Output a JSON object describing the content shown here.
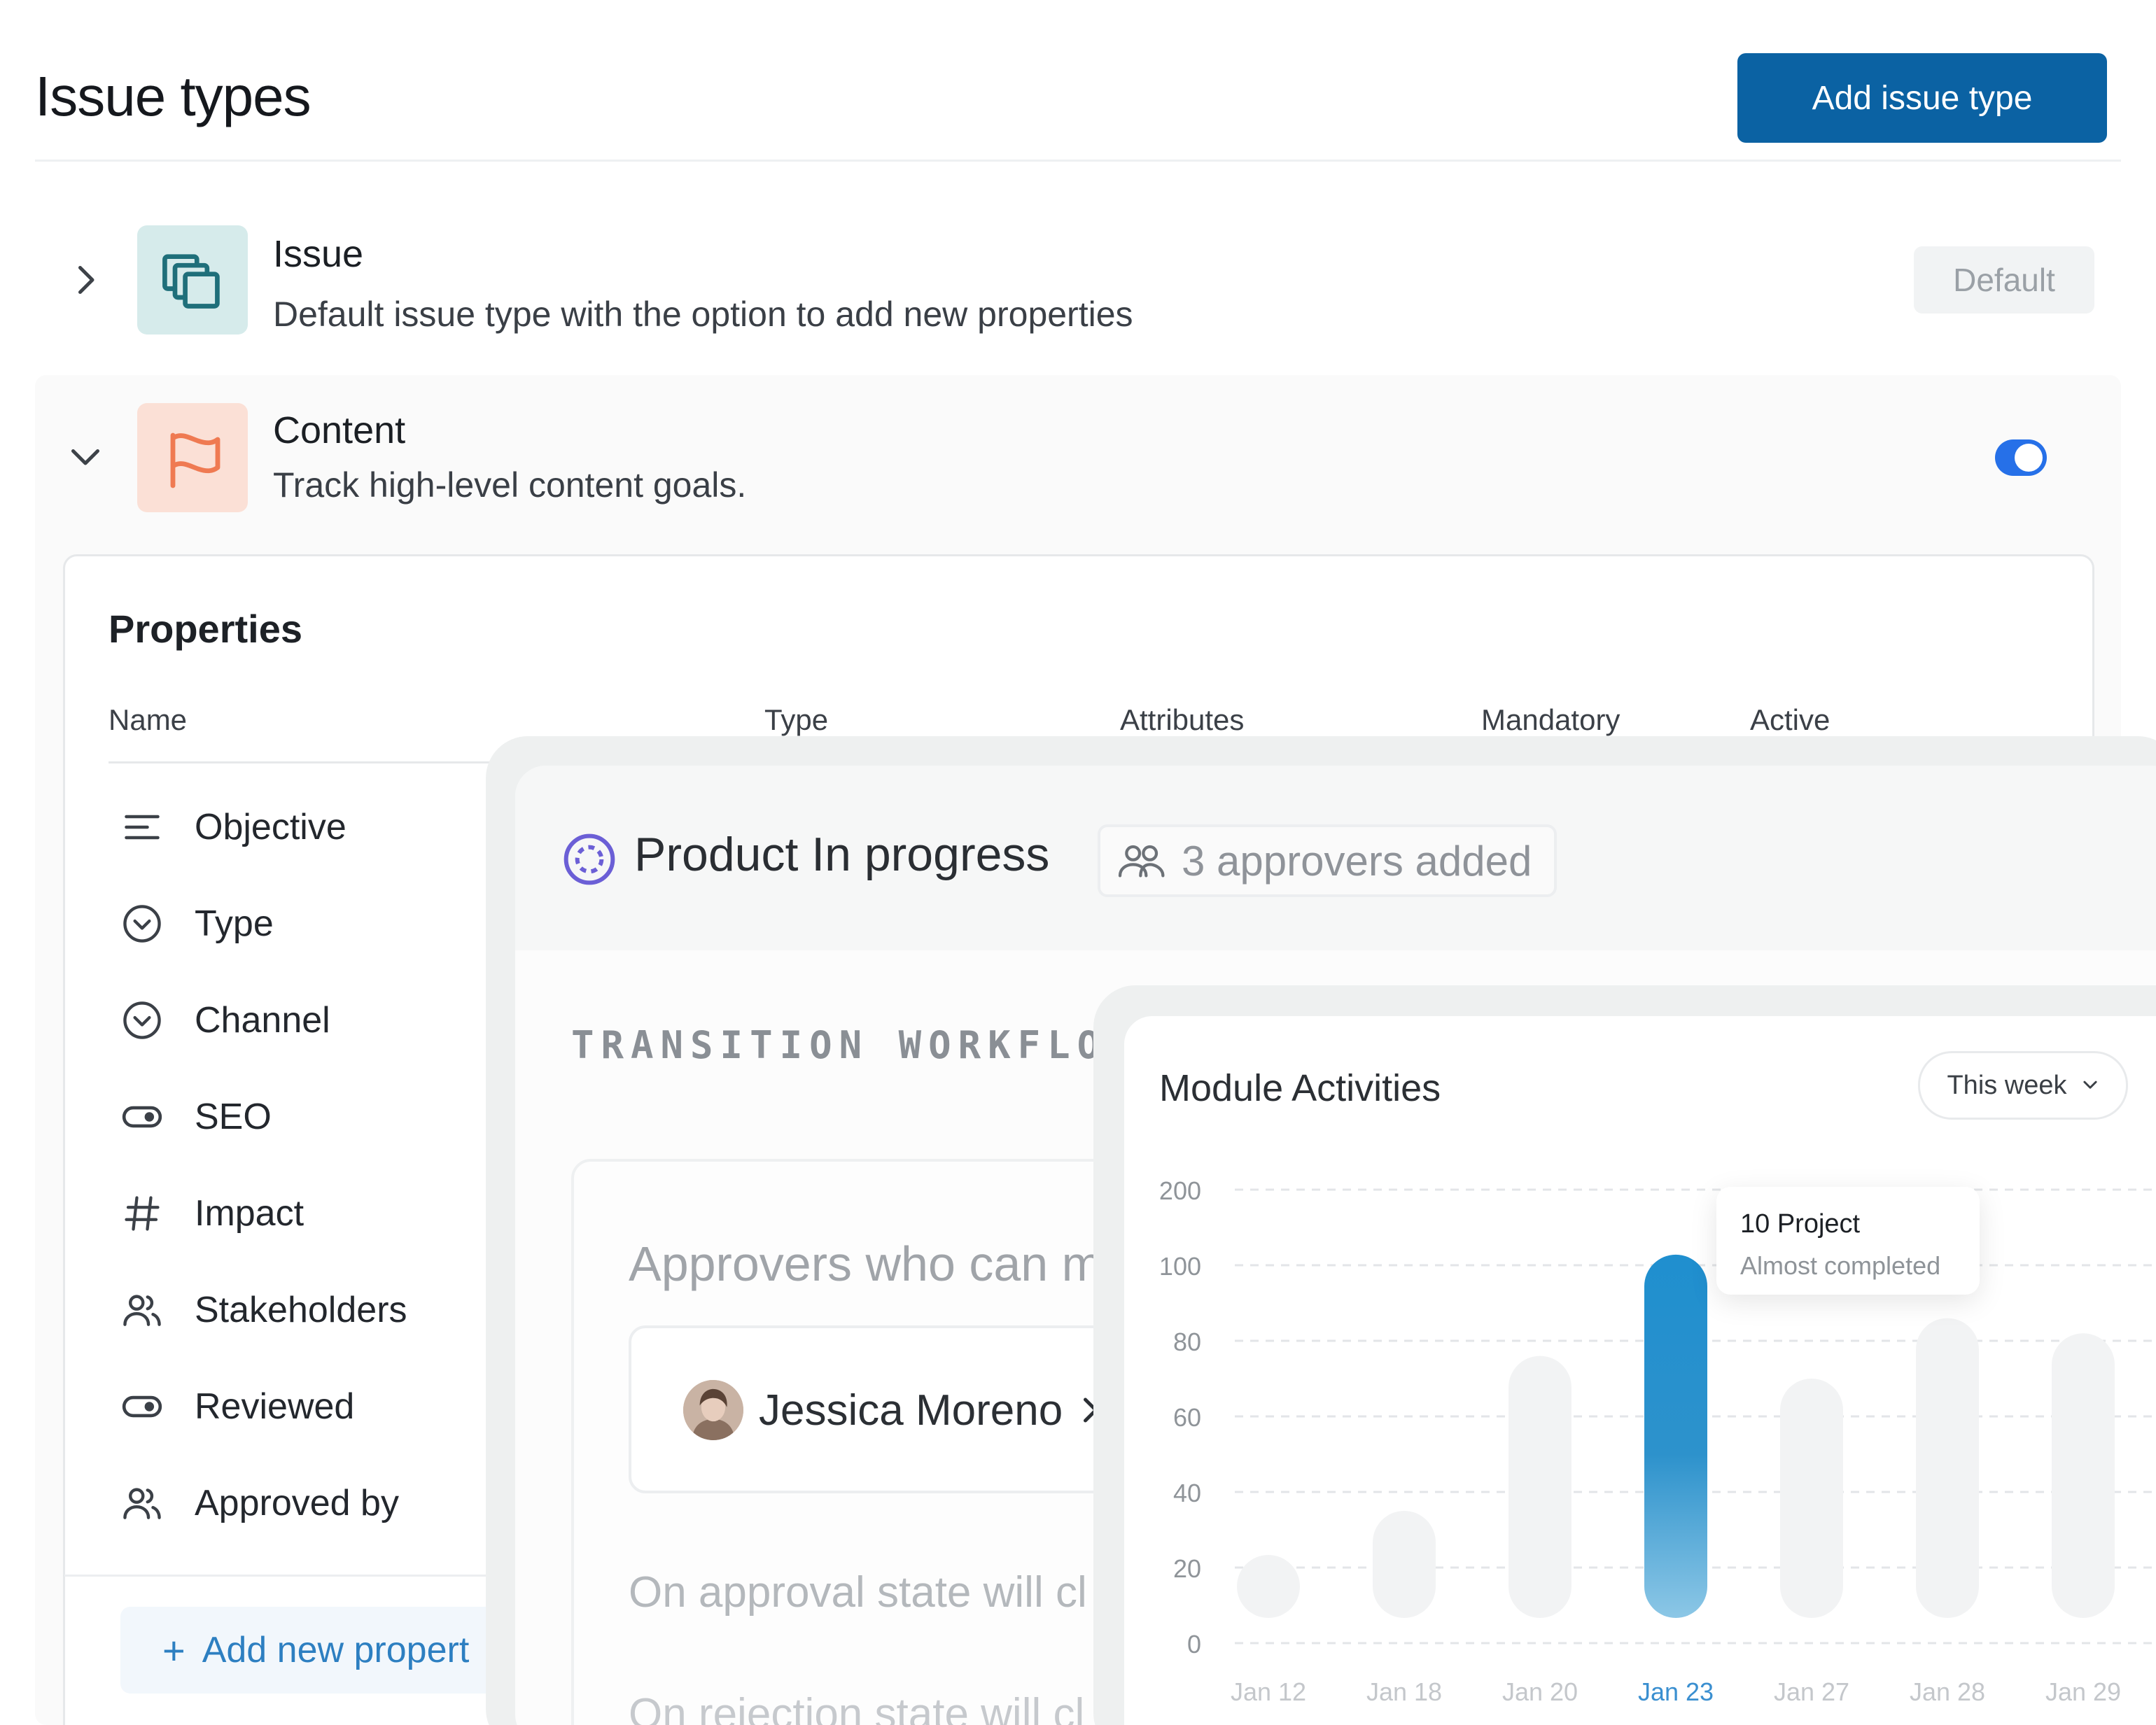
{
  "header": {
    "title": "Issue types",
    "add_button": "Add issue type"
  },
  "issue_types": [
    {
      "name": "Issue",
      "description": "Default issue type with the option to add new properties",
      "badge": "Default",
      "expanded": false,
      "icon": "layers-icon",
      "icon_bg": "#d6ebeb",
      "icon_color": "#1f6f7a"
    },
    {
      "name": "Content",
      "description": "Track high-level content goals.",
      "expanded": true,
      "active": true,
      "icon": "flag-icon",
      "icon_bg": "#fbe0d6",
      "icon_color": "#ef7a52"
    }
  ],
  "properties": {
    "title": "Properties",
    "columns": [
      "Name",
      "Type",
      "Attributes",
      "Mandatory",
      "Active"
    ],
    "items": [
      {
        "label": "Objective",
        "icon": "text-align-icon"
      },
      {
        "label": "Type",
        "icon": "dropdown-circle-icon"
      },
      {
        "label": "Channel",
        "icon": "dropdown-circle-icon"
      },
      {
        "label": "SEO",
        "icon": "toggle-icon"
      },
      {
        "label": "Impact",
        "icon": "hash-icon"
      },
      {
        "label": "Stakeholders",
        "icon": "users-icon"
      },
      {
        "label": "Reviewed",
        "icon": "toggle-icon"
      },
      {
        "label": "Approved by",
        "icon": "users-icon"
      }
    ],
    "add_button": "Add new propert"
  },
  "workflow": {
    "state_title": "Product In progress",
    "approvers_pill": "3 approvers added",
    "section_label": "TRANSITION WORKFLOW",
    "approvers_heading": "Approvers who can m",
    "approver_name": "Jessica Moreno",
    "approval_text": "On approval state will cl",
    "rejection_text": "On rejection state will cl",
    "accent": "#6b5fd6"
  },
  "module_activities": {
    "title": "Module Activities",
    "period_select": "This week",
    "tooltip": {
      "title": "10 Project",
      "subtitle": "Almost completed"
    },
    "highlight_color": "#1f8fcf"
  },
  "chart_data": {
    "type": "bar",
    "title": "Module Activities",
    "categories": [
      "Jan 12",
      "Jan 18",
      "Jan 20",
      "Jan 23",
      "Jan 27",
      "Jan 28",
      "Jan 29"
    ],
    "y_ticks": [
      "200",
      "100",
      "80",
      "60",
      "40",
      "20",
      "0"
    ],
    "tick_values": [
      200,
      100,
      80,
      60,
      40,
      20,
      0
    ],
    "values": [
      6,
      35,
      76,
      114,
      70,
      86,
      82
    ],
    "highlight_index": 3,
    "grid": true,
    "gridlines": "dashed"
  }
}
